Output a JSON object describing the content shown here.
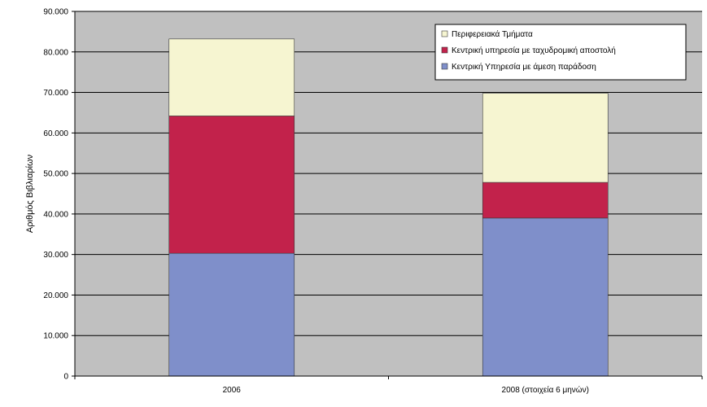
{
  "chart_data": {
    "type": "bar",
    "stacked": true,
    "categories": [
      "2006",
      "2008 (στοιχεία 6 μηνών)"
    ],
    "series": [
      {
        "name": "Κεντρική Υπηρεσία με άμεση παράδοση",
        "values": [
          30300,
          39000
        ],
        "color": "#7f8fca"
      },
      {
        "name": "Κεντρική υπηρεσία με ταχυδρομική αποστολή",
        "values": [
          33900,
          8800
        ],
        "color": "#c2224b"
      },
      {
        "name": "Περιφερειακά Τμήματα",
        "values": [
          19000,
          22000
        ],
        "color": "#f6f5d1"
      }
    ],
    "title": "",
    "xlabel": "",
    "ylabel": "Αριθμός Βιβλιαρίων",
    "ylim": [
      0,
      90000
    ],
    "yticks": [
      0,
      10000,
      20000,
      30000,
      40000,
      50000,
      60000,
      70000,
      80000,
      90000
    ],
    "ytick_labels": [
      "0",
      "10.000",
      "20.000",
      "30.000",
      "40.000",
      "50.000",
      "60.000",
      "70.000",
      "80.000",
      "90.000"
    ],
    "grid": true,
    "plot_background": "#c0c0c0",
    "legend_position": "top-right",
    "legend_order": [
      2,
      1,
      0
    ]
  }
}
